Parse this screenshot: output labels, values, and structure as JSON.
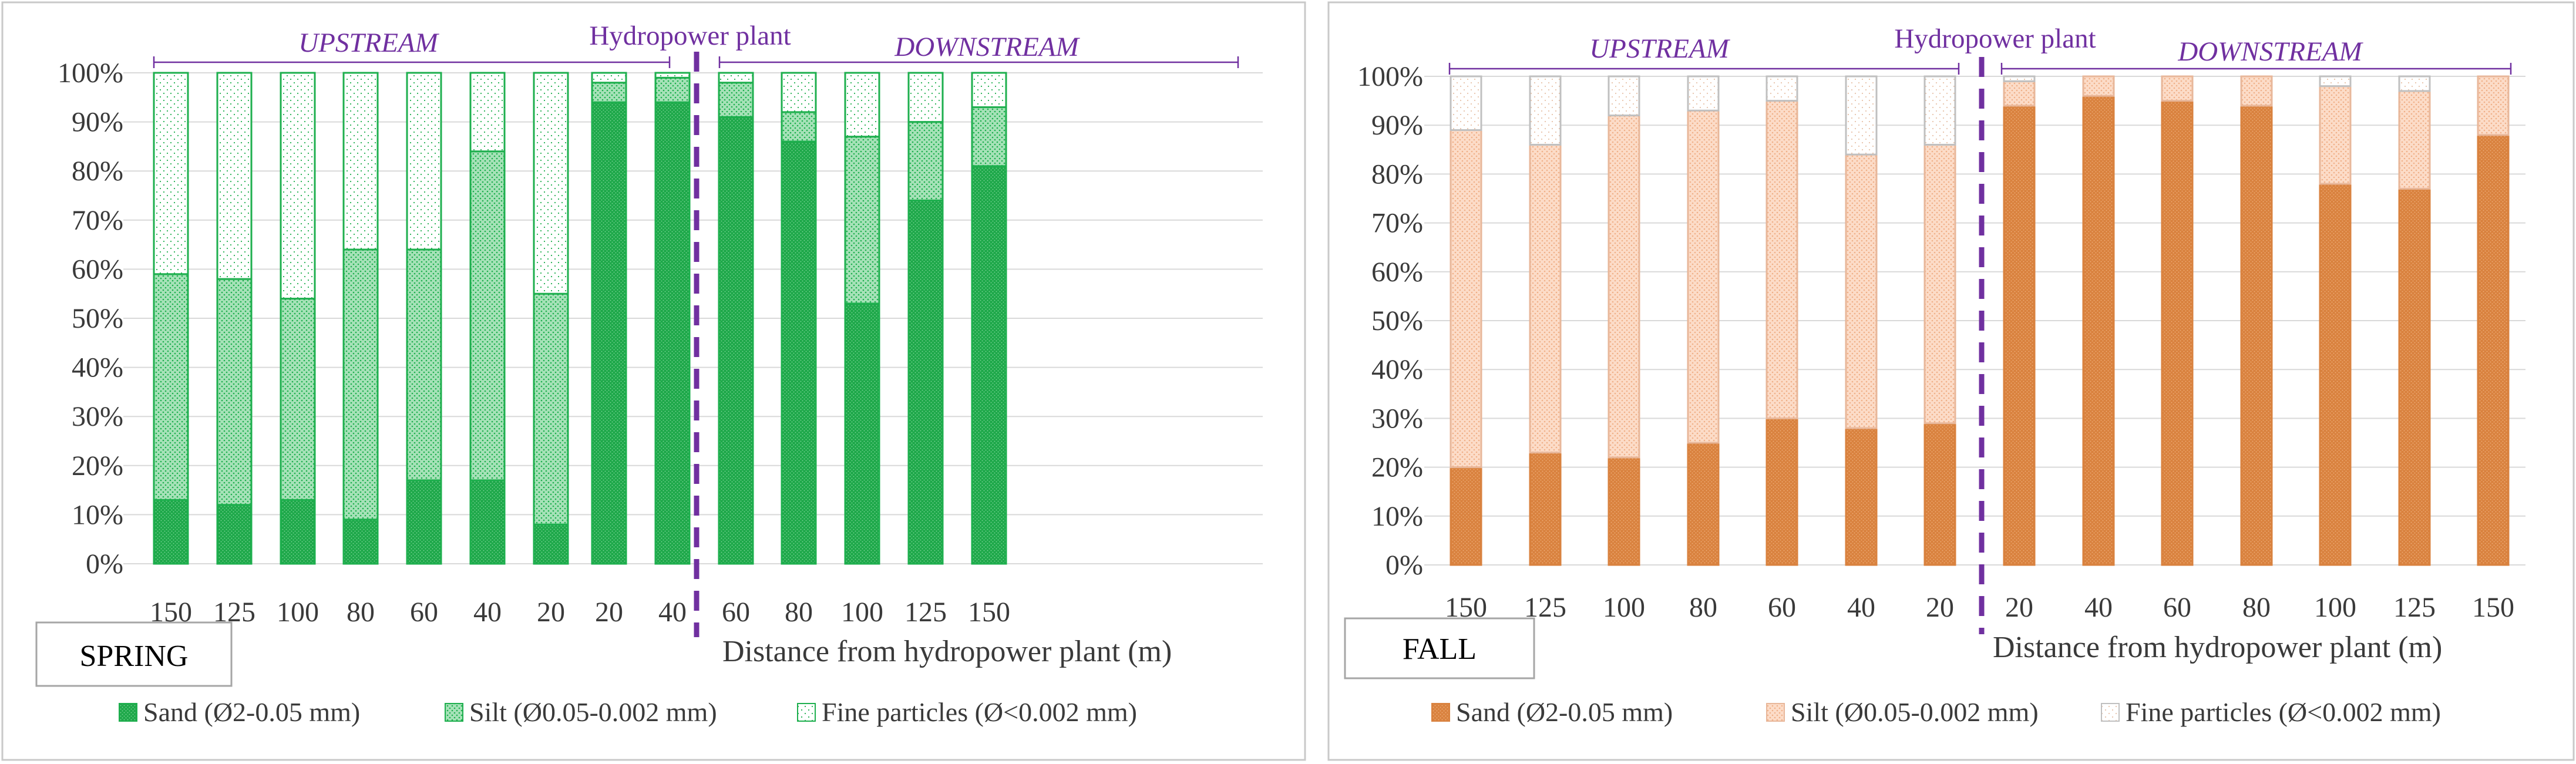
{
  "x_axis_label": "Distance from hydropower plant (m)",
  "plant_label": "Hydropower plant",
  "upstream_label": "UPSTREAM",
  "downstream_label": "DOWNSTREAM",
  "y_ticks": [
    "0%",
    "10%",
    "20%",
    "30%",
    "40%",
    "50%",
    "60%",
    "70%",
    "80%",
    "90%",
    "100%"
  ],
  "chart_data": [
    {
      "type": "bar",
      "stacked": true,
      "season": "SPRING",
      "categories": [
        "150",
        "125",
        "100",
        "80",
        "60",
        "40",
        "20",
        "20",
        "40",
        "60",
        "80",
        "100",
        "125",
        "150"
      ],
      "groups": [
        "UPSTREAM",
        "UPSTREAM",
        "UPSTREAM",
        "UPSTREAM",
        "UPSTREAM",
        "UPSTREAM",
        "UPSTREAM",
        "DOWNSTREAM",
        "DOWNSTREAM",
        "DOWNSTREAM",
        "DOWNSTREAM",
        "DOWNSTREAM",
        "DOWNSTREAM",
        "DOWNSTREAM"
      ],
      "series": [
        {
          "name": "Sand (Ø2-0.05 mm)",
          "values": [
            13,
            12,
            13,
            9,
            17,
            17,
            8,
            94,
            94,
            91,
            86,
            53,
            74,
            81
          ]
        },
        {
          "name": "Silt (Ø0.05-0.002 mm)",
          "values": [
            46,
            46,
            41,
            55,
            47,
            67,
            47,
            4,
            5,
            7,
            6,
            34,
            16,
            12
          ]
        },
        {
          "name": "Fine particles (Ø<0.002 mm)",
          "values": [
            41,
            42,
            46,
            36,
            36,
            16,
            45,
            2,
            1,
            2,
            8,
            13,
            10,
            7
          ]
        }
      ],
      "colors": {
        "fill": [
          "#1ea84a",
          "#8fd8a4",
          "#f4fcf6"
        ],
        "stroke": "#1eaf4e"
      },
      "xlabel": "Distance from hydropower plant (m)",
      "ylabel": "",
      "ylim": [
        0,
        100
      ],
      "legend": "bottom"
    },
    {
      "type": "bar",
      "stacked": true,
      "season": "FALL",
      "categories": [
        "150",
        "125",
        "100",
        "80",
        "60",
        "40",
        "20",
        "20",
        "40",
        "60",
        "80",
        "100",
        "125",
        "150"
      ],
      "groups": [
        "UPSTREAM",
        "UPSTREAM",
        "UPSTREAM",
        "UPSTREAM",
        "UPSTREAM",
        "UPSTREAM",
        "UPSTREAM",
        "DOWNSTREAM",
        "DOWNSTREAM",
        "DOWNSTREAM",
        "DOWNSTREAM",
        "DOWNSTREAM",
        "DOWNSTREAM",
        "DOWNSTREAM"
      ],
      "series": [
        {
          "name": "Sand (Ø2-0.05 mm)",
          "values": [
            20,
            23,
            22,
            25,
            30,
            28,
            29,
            94,
            96,
            95,
            94,
            78,
            77,
            88
          ]
        },
        {
          "name": "Silt (Ø0.05-0.002 mm)",
          "values": [
            69,
            63,
            70,
            68,
            65,
            56,
            57,
            5,
            4,
            5,
            6,
            20,
            20,
            12
          ]
        },
        {
          "name": "Fine particles (Ø<0.002 mm)",
          "values": [
            11,
            14,
            8,
            7,
            5,
            16,
            14,
            1,
            0,
            0,
            0,
            2,
            3,
            0
          ]
        }
      ],
      "colors": {
        "fill": [
          "#d9823f",
          "#fad3bd",
          "#fdf6f1"
        ],
        "stroke": "#c0c0c0"
      },
      "xlabel": "Distance from hydropower plant (m)",
      "ylabel": "",
      "ylim": [
        0,
        100
      ],
      "legend": "bottom"
    }
  ]
}
